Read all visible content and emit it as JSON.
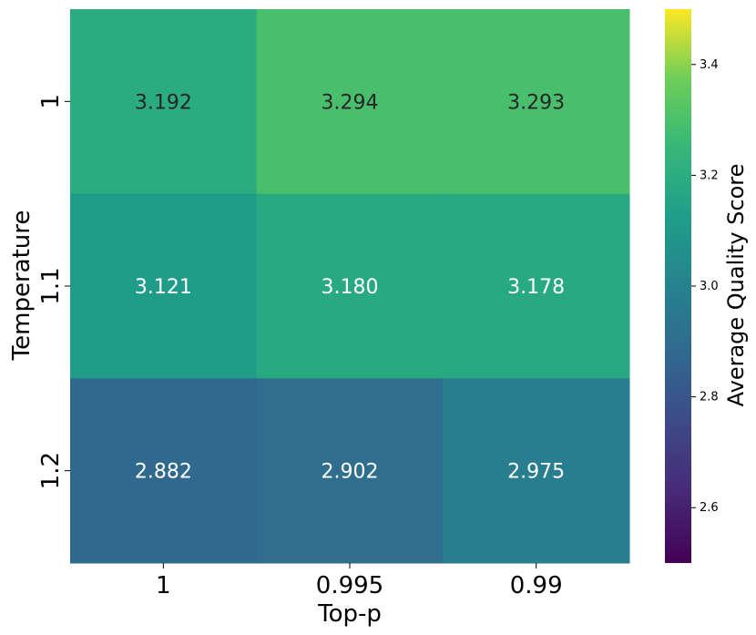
{
  "chart_data": {
    "type": "heatmap",
    "title": "",
    "xlabel": "Top-p",
    "ylabel": "Temperature",
    "x_categories": [
      "1",
      "0.995",
      "0.99"
    ],
    "y_categories": [
      "1",
      "1.1",
      "1.2"
    ],
    "values": [
      [
        3.192,
        3.294,
        3.293
      ],
      [
        3.121,
        3.18,
        3.178
      ],
      [
        2.882,
        2.902,
        2.975
      ]
    ],
    "value_labels": [
      [
        "3.192",
        "3.294",
        "3.293"
      ],
      [
        "3.121",
        "3.180",
        "3.178"
      ],
      [
        "2.882",
        "2.902",
        "2.975"
      ]
    ],
    "colormap": "viridis",
    "colorbar": {
      "label": "Average Quality Score",
      "range": [
        2.5,
        3.5
      ],
      "ticks": [
        "2.6",
        "2.8",
        "3.0",
        "3.2",
        "3.4"
      ]
    },
    "grid": false
  }
}
